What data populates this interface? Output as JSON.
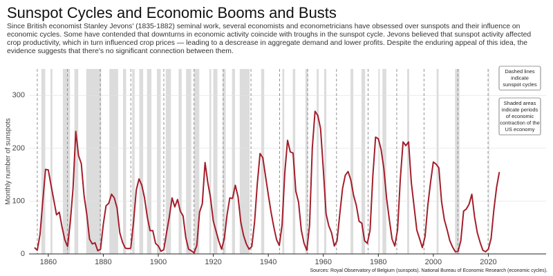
{
  "chart_data": {
    "type": "line",
    "title": "Sunspot Cycles and Economic Booms and Busts",
    "subtitle": "Since British economist Stanley Jevons' (1835-1882) seminal work, several economists and econometricians have obsessed over sunspots and their influence on economic cycles. Some have contended that downturns in economic activity coincide with troughs in the sunspot cycle. Jevons believed that sunspot activity affected crop productivity, which in turn influenced crop prices — leading to a descrease in aggregate demand and lower profits. Despite the enduring appeal of this idea, the evidence suggests that there's no significant connection between them.",
    "y_label": "Monthly number of sunspots",
    "source": "Sources: Royal Observatory of Belgium (sunspots). National Bureau of Economic Research (economic cycles).",
    "annotations": [
      [
        "Dashed lines",
        "indicate",
        "sunspot cycles"
      ],
      [
        "Shaded areas",
        "indicate periods",
        "of economic",
        "contraction of the",
        "US economy"
      ]
    ],
    "color": "#a31d2a",
    "recession_color": "#dcdcdc",
    "grid": true,
    "xlim": [
      1853,
      2041
    ],
    "xticks": [
      1860,
      1880,
      1900,
      1920,
      1940,
      1960,
      1980,
      2000,
      2020
    ],
    "ylim": [
      0,
      350
    ],
    "yticks": [
      0,
      100,
      200,
      300
    ],
    "x": [
      1855,
      1856,
      1857,
      1858,
      1859,
      1860,
      1861,
      1862,
      1863,
      1864,
      1865,
      1866,
      1867,
      1868,
      1869,
      1870,
      1871,
      1872,
      1873,
      1874,
      1875,
      1876,
      1877,
      1878,
      1879,
      1880,
      1881,
      1882,
      1883,
      1884,
      1885,
      1886,
      1887,
      1888,
      1889,
      1890,
      1891,
      1892,
      1893,
      1894,
      1895,
      1896,
      1897,
      1898,
      1899,
      1900,
      1901,
      1902,
      1903,
      1904,
      1905,
      1906,
      1907,
      1908,
      1909,
      1910,
      1911,
      1912,
      1913,
      1914,
      1915,
      1916,
      1917,
      1918,
      1919,
      1920,
      1921,
      1922,
      1923,
      1924,
      1925,
      1926,
      1927,
      1928,
      1929,
      1930,
      1931,
      1932,
      1933,
      1934,
      1935,
      1936,
      1937,
      1938,
      1939,
      1940,
      1941,
      1942,
      1943,
      1944,
      1945,
      1946,
      1947,
      1948,
      1949,
      1950,
      1951,
      1952,
      1953,
      1954,
      1955,
      1956,
      1957,
      1958,
      1959,
      1960,
      1961,
      1962,
      1963,
      1964,
      1965,
      1966,
      1967,
      1968,
      1969,
      1970,
      1971,
      1972,
      1973,
      1974,
      1975,
      1976,
      1977,
      1978,
      1979,
      1980,
      1981,
      1982,
      1983,
      1984,
      1985,
      1986,
      1987,
      1988,
      1989,
      1990,
      1991,
      1992,
      1993,
      1994,
      1995,
      1996,
      1997,
      1998,
      1999,
      2000,
      2001,
      2002,
      2003,
      2004,
      2005,
      2006,
      2007,
      2008,
      2009,
      2010,
      2011,
      2012,
      2013,
      2014,
      2015,
      2016,
      2017,
      2018,
      2019,
      2020,
      2021,
      2022,
      2023,
      2024
    ],
    "values": [
      12,
      7,
      37,
      100,
      160,
      159,
      130,
      102,
      74,
      79,
      51,
      27,
      14,
      60,
      124,
      232,
      186,
      171,
      111,
      75,
      28,
      19,
      21,
      6,
      9,
      56,
      91,
      96,
      113,
      106,
      87,
      40,
      22,
      11,
      10,
      11,
      61,
      121,
      142,
      130,
      106,
      70,
      44,
      44,
      20,
      15,
      5,
      8,
      40,
      70,
      106,
      89,
      103,
      81,
      72,
      31,
      9,
      6,
      2,
      16,
      79,
      95,
      173,
      135,
      106,
      62,
      43,
      24,
      9,
      29,
      74,
      106,
      105,
      130,
      108,
      60,
      35,
      19,
      9,
      14,
      60,
      133,
      190,
      182,
      147,
      112,
      79,
      51,
      27,
      16,
      55,
      154,
      215,
      193,
      191,
      119,
      98,
      45,
      20,
      7,
      54,
      201,
      270,
      262,
      237,
      160,
      76,
      53,
      40,
      15,
      25,
      76,
      124,
      149,
      156,
      140,
      111,
      92,
      62,
      58,
      25,
      20,
      45,
      147,
      221,
      218,
      198,
      162,
      106,
      65,
      28,
      15,
      46,
      142,
      212,
      205,
      212,
      135,
      90,
      45,
      29,
      12,
      33,
      92,
      136,
      174,
      170,
      163,
      99,
      65,
      46,
      25,
      13,
      4,
      5,
      25,
      81,
      85,
      94,
      113,
      70,
      40,
      22,
      7,
      4,
      9,
      29,
      83,
      126,
      155
    ],
    "cycle_minima": [
      1856,
      1867,
      1878.9,
      1890,
      1902,
      1913,
      1923.6,
      1933.7,
      1944.1,
      1954.3,
      1964.8,
      1976.3,
      1986.7,
      1996.6,
      2008.9,
      2019.9
    ],
    "recessions": [
      [
        1857.5,
        1858.9
      ],
      [
        1860.8,
        1861.5
      ],
      [
        1865.3,
        1867.9
      ],
      [
        1869.5,
        1870.9
      ],
      [
        1873.8,
        1879.2
      ],
      [
        1882.2,
        1885.4
      ],
      [
        1887.2,
        1888.3
      ],
      [
        1890.5,
        1891.4
      ],
      [
        1893.1,
        1894.5
      ],
      [
        1895.9,
        1897.5
      ],
      [
        1899.5,
        1900.9
      ],
      [
        1902.7,
        1904.6
      ],
      [
        1907.4,
        1908.5
      ],
      [
        1910.1,
        1912.0
      ],
      [
        1913.0,
        1914.9
      ],
      [
        1918.6,
        1919.2
      ],
      [
        1920.0,
        1921.5
      ],
      [
        1923.4,
        1924.5
      ],
      [
        1926.8,
        1927.9
      ],
      [
        1929.6,
        1933.2
      ],
      [
        1937.4,
        1938.5
      ],
      [
        1945.1,
        1945.8
      ],
      [
        1948.9,
        1949.8
      ],
      [
        1953.5,
        1954.4
      ],
      [
        1957.6,
        1958.3
      ],
      [
        1960.3,
        1961.1
      ],
      [
        1969.9,
        1970.9
      ],
      [
        1973.9,
        1975.2
      ],
      [
        1980.0,
        1980.5
      ],
      [
        1981.5,
        1982.9
      ],
      [
        1990.5,
        1991.2
      ],
      [
        2001.2,
        2001.9
      ],
      [
        2007.9,
        2009.5
      ],
      [
        2020.1,
        2020.3
      ]
    ]
  }
}
